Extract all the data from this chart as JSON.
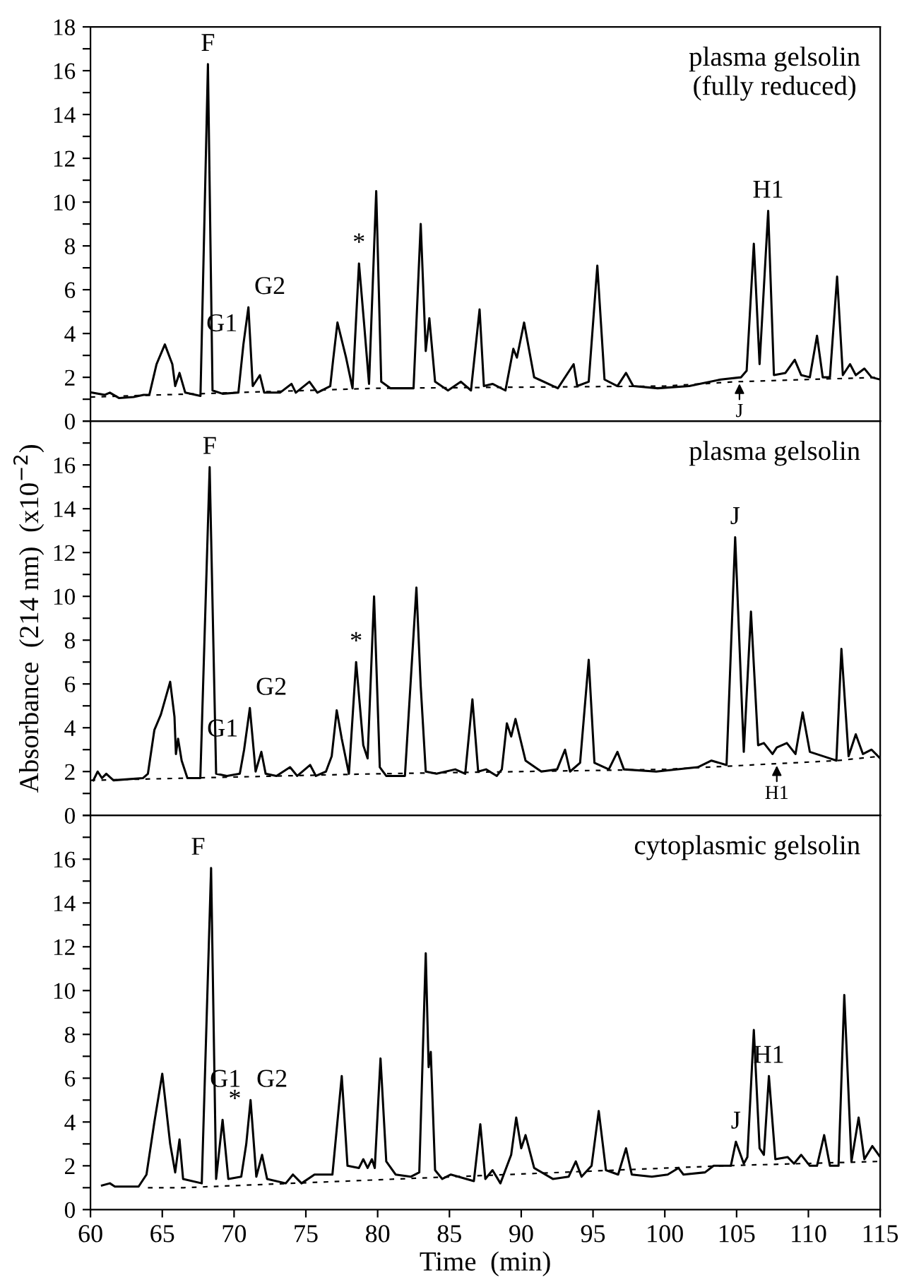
{
  "chart_data": [
    {
      "type": "line",
      "title": "plasma gelsolin\n(fully reduced)",
      "xlim": [
        60,
        115
      ],
      "ylim": [
        0,
        18
      ],
      "tick_labels": "y",
      "yticks": [
        0,
        {
          "value": 1,
          "label": null
        },
        2,
        {
          "value": 3,
          "label": null
        },
        4,
        {
          "value": 5,
          "label": null
        },
        6,
        {
          "value": 7,
          "label": null
        },
        8,
        {
          "value": 9,
          "label": null
        },
        10,
        {
          "value": 11,
          "label": null
        },
        12,
        {
          "value": 13,
          "label": null
        },
        14,
        {
          "value": 15,
          "label": null
        },
        16,
        {
          "value": 17,
          "label": null
        },
        18
      ],
      "series": [
        {
          "color": "#000000",
          "line_style": "solid",
          "x": [
            60.1,
            61,
            61.35,
            62,
            63,
            63.7,
            64.1,
            64.6,
            65.18,
            65.7,
            65.9,
            66.2,
            66.6,
            67.66,
            68.18,
            68.5,
            69.2,
            70.3,
            70.65,
            71.0,
            71.3,
            71.8,
            72.1,
            73.2,
            74.0,
            74.3,
            75.25,
            75.8,
            76.7,
            76.9,
            77.2,
            77.8,
            78.25,
            78.7,
            79.05,
            79.4,
            79.9,
            80.25,
            80.9,
            82.5,
            83.0,
            83.35,
            83.6,
            84.0,
            84.9,
            85.8,
            86.5,
            87.1,
            87.4,
            88.0,
            88.9,
            89.45,
            89.7,
            90.2,
            90.9,
            92.55,
            93.65,
            93.9,
            94.7,
            95.3,
            95.8,
            96.7,
            97.3,
            97.8,
            99.5,
            101.7,
            103.9,
            105.3,
            105.7,
            106.2,
            106.6,
            107.2,
            107.6,
            108.4,
            109.05,
            109.5,
            110.1,
            110.6,
            111.0,
            111.5,
            112.0,
            112.4,
            112.9,
            113.3,
            113.9,
            114.4,
            115
          ],
          "values": [
            1.3,
            1.2,
            1.3,
            1.05,
            1.1,
            1.2,
            1.2,
            2.6,
            3.5,
            2.6,
            1.6,
            2.2,
            1.3,
            1.15,
            16.3,
            1.4,
            1.25,
            1.3,
            3.5,
            5.2,
            1.6,
            2.1,
            1.3,
            1.3,
            1.7,
            1.3,
            1.8,
            1.3,
            1.6,
            2.8,
            4.5,
            2.9,
            1.5,
            7.2,
            4.5,
            1.7,
            10.5,
            1.8,
            1.5,
            1.5,
            9.0,
            3.2,
            4.7,
            1.8,
            1.4,
            1.8,
            1.4,
            5.1,
            1.6,
            1.7,
            1.4,
            3.3,
            2.9,
            4.5,
            2.0,
            1.5,
            2.6,
            1.6,
            1.8,
            7.1,
            1.9,
            1.6,
            2.2,
            1.6,
            1.5,
            1.6,
            1.9,
            2.0,
            2.3,
            8.1,
            2.6,
            9.6,
            2.1,
            2.2,
            2.8,
            2.1,
            2.0,
            3.9,
            2.0,
            2.0,
            6.6,
            2.1,
            2.6,
            2.1,
            2.4,
            2.0,
            1.9
          ]
        },
        {
          "color": "#000000",
          "line_style": "dashed",
          "x": [
            60,
            80,
            100,
            105,
            115
          ],
          "values": [
            1.1,
            1.5,
            1.6,
            1.8,
            2.0
          ]
        }
      ],
      "annotations": [
        {
          "text": "F",
          "x": 68.18,
          "y": 16.3
        },
        {
          "text": "G1",
          "x": 70.65,
          "y": 3.5
        },
        {
          "text": "G2",
          "x": 71.0,
          "y": 5.2
        },
        {
          "text": "*",
          "x": 78.7,
          "y": 7.2
        },
        {
          "text": "H1",
          "x": 107.2,
          "y": 9.6
        },
        {
          "text": "J",
          "x": 105.2,
          "y": 1.8
        }
      ]
    },
    {
      "type": "line",
      "title": "plasma gelsolin",
      "ylabel": "Absorbance  (214 nm)  (x10$^{−2}$)",
      "xlim": [
        60,
        115
      ],
      "ylim": [
        0,
        18
      ],
      "tick_labels": "y",
      "yticks": [
        0,
        {
          "value": 1,
          "label": null
        },
        2,
        {
          "value": 3,
          "label": null
        },
        4,
        {
          "value": 5,
          "label": null
        },
        6,
        {
          "value": 7,
          "label": null
        },
        8,
        {
          "value": 9,
          "label": null
        },
        10,
        {
          "value": 11,
          "label": null
        },
        12,
        {
          "value": 13,
          "label": null
        },
        14,
        {
          "value": 15,
          "label": null
        },
        16,
        {
          "value": 17,
          "label": null
        },
        {
          "value": 18,
          "label": null
        }
      ],
      "series": [
        {
          "color": "#000000",
          "line_style": "solid",
          "x": [
            60.2,
            60.5,
            60.8,
            61.1,
            61.6,
            63.65,
            64.0,
            64.45,
            64.9,
            65.55,
            65.85,
            65.95,
            66.1,
            66.35,
            66.75,
            67.65,
            68.3,
            68.75,
            69.5,
            70.4,
            70.7,
            71.1,
            71.5,
            71.9,
            72.2,
            72.95,
            73.9,
            74.4,
            75.3,
            75.7,
            76.4,
            76.8,
            77.15,
            77.5,
            78.0,
            78.5,
            79.0,
            79.3,
            79.75,
            80.15,
            80.6,
            81.9,
            82.7,
            83.0,
            83.35,
            84.1,
            85.4,
            86.1,
            86.6,
            87.0,
            87.55,
            88.3,
            88.65,
            89.0,
            89.3,
            89.6,
            90.3,
            91.4,
            92.5,
            93.05,
            93.4,
            94.1,
            94.7,
            95.1,
            96.1,
            96.7,
            97.15,
            99.4,
            102.3,
            103.25,
            104.3,
            104.9,
            105.5,
            106.0,
            106.5,
            106.9,
            107.5,
            107.8,
            108.5,
            109.1,
            109.6,
            110.1,
            111.5,
            111.95,
            112.3,
            112.8,
            113.3,
            113.8,
            114.4,
            115.0
          ],
          "values": [
            1.6,
            2.0,
            1.7,
            1.9,
            1.6,
            1.7,
            1.9,
            3.9,
            4.6,
            6.1,
            4.5,
            2.8,
            3.5,
            2.5,
            1.7,
            1.7,
            15.9,
            1.9,
            1.8,
            1.9,
            3.0,
            4.9,
            2.0,
            2.9,
            1.9,
            1.8,
            2.2,
            1.8,
            2.3,
            1.8,
            2.0,
            2.7,
            4.8,
            3.5,
            1.9,
            7.0,
            3.2,
            2.6,
            10.0,
            2.2,
            1.8,
            1.8,
            10.4,
            5.9,
            2.0,
            1.9,
            2.1,
            1.9,
            5.3,
            2.0,
            2.1,
            1.8,
            2.1,
            4.2,
            3.6,
            4.4,
            2.5,
            2.0,
            2.1,
            3.0,
            2.0,
            2.4,
            7.1,
            2.4,
            2.1,
            2.9,
            2.1,
            2.0,
            2.2,
            2.5,
            2.3,
            12.7,
            2.9,
            9.3,
            3.2,
            3.3,
            2.8,
            3.1,
            3.3,
            2.8,
            4.7,
            2.9,
            2.6,
            2.5,
            7.6,
            2.7,
            3.7,
            2.8,
            3.0,
            2.6
          ]
        },
        {
          "color": "#000000",
          "line_style": "dashed",
          "x": [
            60,
            80,
            100,
            112,
            115
          ],
          "values": [
            1.6,
            1.9,
            2.1,
            2.5,
            2.7
          ]
        }
      ],
      "annotations": [
        {
          "text": "F",
          "x": 68.3,
          "y": 15.9
        },
        {
          "text": "G1",
          "x": 70.7,
          "y": 3.0
        },
        {
          "text": "G2",
          "x": 71.1,
          "y": 4.9
        },
        {
          "text": "*",
          "x": 78.5,
          "y": 7.0
        },
        {
          "text": "J",
          "x": 104.9,
          "y": 12.7
        },
        {
          "text": "H1",
          "x": 107.8,
          "y": 2.36
        }
      ]
    },
    {
      "type": "line",
      "title": "cytoplasmic gelsolin",
      "xlabel": "Time  (min)",
      "xlim": [
        60,
        115
      ],
      "ylim": [
        0,
        18
      ],
      "xticks": [
        60,
        65,
        70,
        75,
        80,
        85,
        90,
        95,
        100,
        105,
        110,
        115
      ],
      "yticks": [
        0,
        {
          "value": 1,
          "label": null
        },
        2,
        {
          "value": 3,
          "label": null
        },
        4,
        {
          "value": 5,
          "label": null
        },
        6,
        {
          "value": 7,
          "label": null
        },
        8,
        {
          "value": 9,
          "label": null
        },
        10,
        {
          "value": 11,
          "label": null
        },
        12,
        {
          "value": 13,
          "label": null
        },
        14,
        {
          "value": 15,
          "label": null
        },
        16,
        {
          "value": 17,
          "label": null
        },
        {
          "value": 18,
          "label": null
        }
      ],
      "series": [
        {
          "color": "#000000",
          "line_style": "solid",
          "x": [
            60.8,
            61.35,
            61.7,
            63.35,
            63.9,
            64.45,
            65.0,
            65.55,
            65.9,
            66.2,
            66.45,
            67.75,
            68.4,
            68.75,
            69.2,
            69.6,
            70.5,
            70.85,
            71.15,
            71.55,
            71.95,
            72.3,
            73.6,
            74.1,
            74.7,
            75.6,
            76.85,
            77.5,
            77.9,
            78.7,
            79.0,
            79.3,
            79.6,
            79.8,
            80.2,
            80.6,
            81.25,
            82.3,
            82.9,
            83.35,
            83.55,
            83.7,
            84.0,
            84.5,
            85.1,
            86.7,
            87.15,
            87.5,
            88.0,
            88.55,
            89.3,
            89.65,
            90.0,
            90.3,
            90.9,
            92.2,
            93.3,
            93.8,
            94.2,
            94.9,
            95.4,
            95.9,
            96.75,
            97.3,
            97.7,
            99.1,
            100.2,
            100.95,
            101.3,
            102.8,
            103.4,
            104.6,
            104.95,
            105.5,
            105.75,
            106.2,
            106.6,
            106.9,
            107.25,
            107.7,
            108.55,
            109.0,
            109.5,
            110.1,
            110.6,
            111.1,
            111.5,
            112.1,
            112.5,
            113.0,
            113.5,
            113.9,
            114.45,
            115
          ],
          "values": [
            1.1,
            1.2,
            1.05,
            1.05,
            1.6,
            4.0,
            6.2,
            3.0,
            1.7,
            3.2,
            1.4,
            1.2,
            15.6,
            1.4,
            4.1,
            1.4,
            1.5,
            3.0,
            5.0,
            1.5,
            2.5,
            1.4,
            1.2,
            1.6,
            1.2,
            1.6,
            1.6,
            6.1,
            2.0,
            1.9,
            2.3,
            1.9,
            2.3,
            1.9,
            6.9,
            2.2,
            1.6,
            1.5,
            1.7,
            11.7,
            6.5,
            7.2,
            1.8,
            1.4,
            1.6,
            1.3,
            3.9,
            1.4,
            1.8,
            1.2,
            2.5,
            4.2,
            2.8,
            3.4,
            1.9,
            1.4,
            1.5,
            2.2,
            1.5,
            2.0,
            4.5,
            1.8,
            1.6,
            2.8,
            1.6,
            1.5,
            1.6,
            1.9,
            1.6,
            1.7,
            2.0,
            2.0,
            3.1,
            2.1,
            2.4,
            8.2,
            2.8,
            2.5,
            6.1,
            2.3,
            2.4,
            2.1,
            2.5,
            2.0,
            2.0,
            3.4,
            2.0,
            2.0,
            9.8,
            2.2,
            4.2,
            2.3,
            2.9,
            2.4
          ]
        },
        {
          "color": "#000000",
          "line_style": "dashed",
          "x": [
            64,
            66.5,
            104,
            115
          ],
          "values": [
            1.0,
            1.0,
            2.0,
            2.2
          ]
        }
      ],
      "annotations": [
        {
          "text": "F",
          "x": 68.4,
          "y": 15.6
        },
        {
          "text": "*",
          "x": 69.2,
          "y": 4.1
        },
        {
          "text": "G1",
          "x": 70.9,
          "y": 5.0
        },
        {
          "text": "G2",
          "x": 71.15,
          "y": 5.0
        },
        {
          "text": "J",
          "x": 104.95,
          "y": 3.1
        },
        {
          "text": "H1",
          "x": 107.25,
          "y": 6.1
        }
      ]
    }
  ]
}
